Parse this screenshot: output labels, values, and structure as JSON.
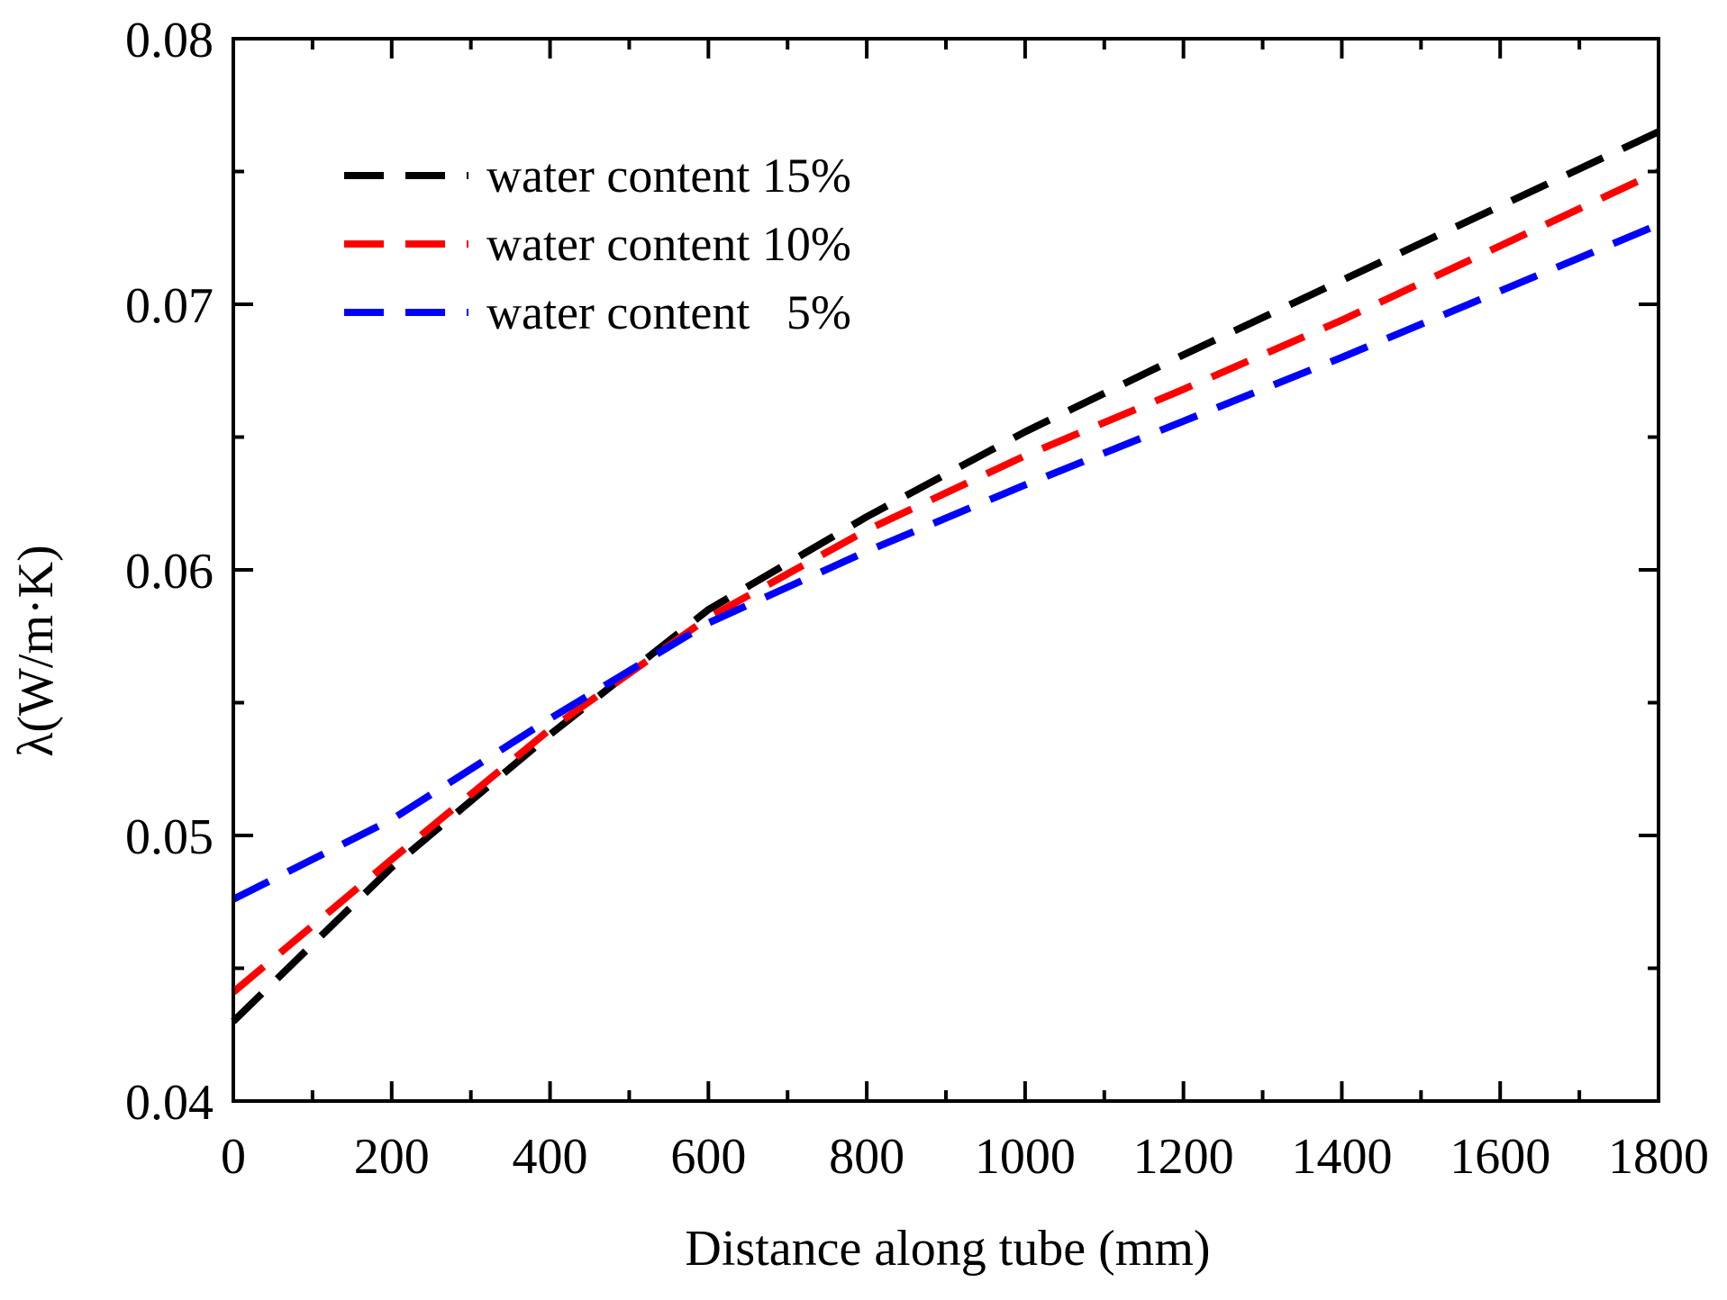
{
  "chart_data": {
    "type": "line",
    "title": "",
    "xlabel": "Distance along tube (mm)",
    "ylabel": "λ(W/m·K)",
    "xlim": [
      0,
      1800
    ],
    "ylim": [
      0.04,
      0.08
    ],
    "x_ticks": [
      0,
      200,
      400,
      600,
      800,
      1000,
      1200,
      1400,
      1600,
      1800
    ],
    "x_tick_labels": [
      "0",
      "200",
      "400",
      "600",
      "800",
      "1000",
      "1200",
      "1400",
      "1600",
      "1800"
    ],
    "y_ticks": [
      0.04,
      0.05,
      0.06,
      0.07,
      0.08
    ],
    "y_tick_labels": [
      "0.04",
      "0.05",
      "0.06",
      "0.07",
      "0.08"
    ],
    "grid": false,
    "legend_position": "top-left",
    "line_style": "dashed",
    "series": [
      {
        "name": "water content 15%",
        "color": "#000000",
        "x": [
          0,
          200,
          400,
          600,
          800,
          1000,
          1200,
          1400,
          1600,
          1800
        ],
        "y": [
          0.043,
          0.0488,
          0.0538,
          0.0585,
          0.062,
          0.0652,
          0.0681,
          0.0709,
          0.0737,
          0.0765
        ]
      },
      {
        "name": "water content 10%",
        "color": "#ff0000",
        "x": [
          0,
          200,
          400,
          600,
          800,
          1000,
          1200,
          1400,
          1600,
          1800
        ],
        "y": [
          0.0441,
          0.0491,
          0.054,
          0.0582,
          0.0615,
          0.0643,
          0.0668,
          0.0694,
          0.0722,
          0.075
        ]
      },
      {
        "name": "water content   5%",
        "color": "#0000ff",
        "x": [
          0,
          200,
          400,
          600,
          800,
          1000,
          1200,
          1400,
          1600,
          1800
        ],
        "y": [
          0.0476,
          0.0506,
          0.0544,
          0.058,
          0.0607,
          0.0632,
          0.0656,
          0.068,
          0.0705,
          0.073
        ]
      }
    ]
  }
}
